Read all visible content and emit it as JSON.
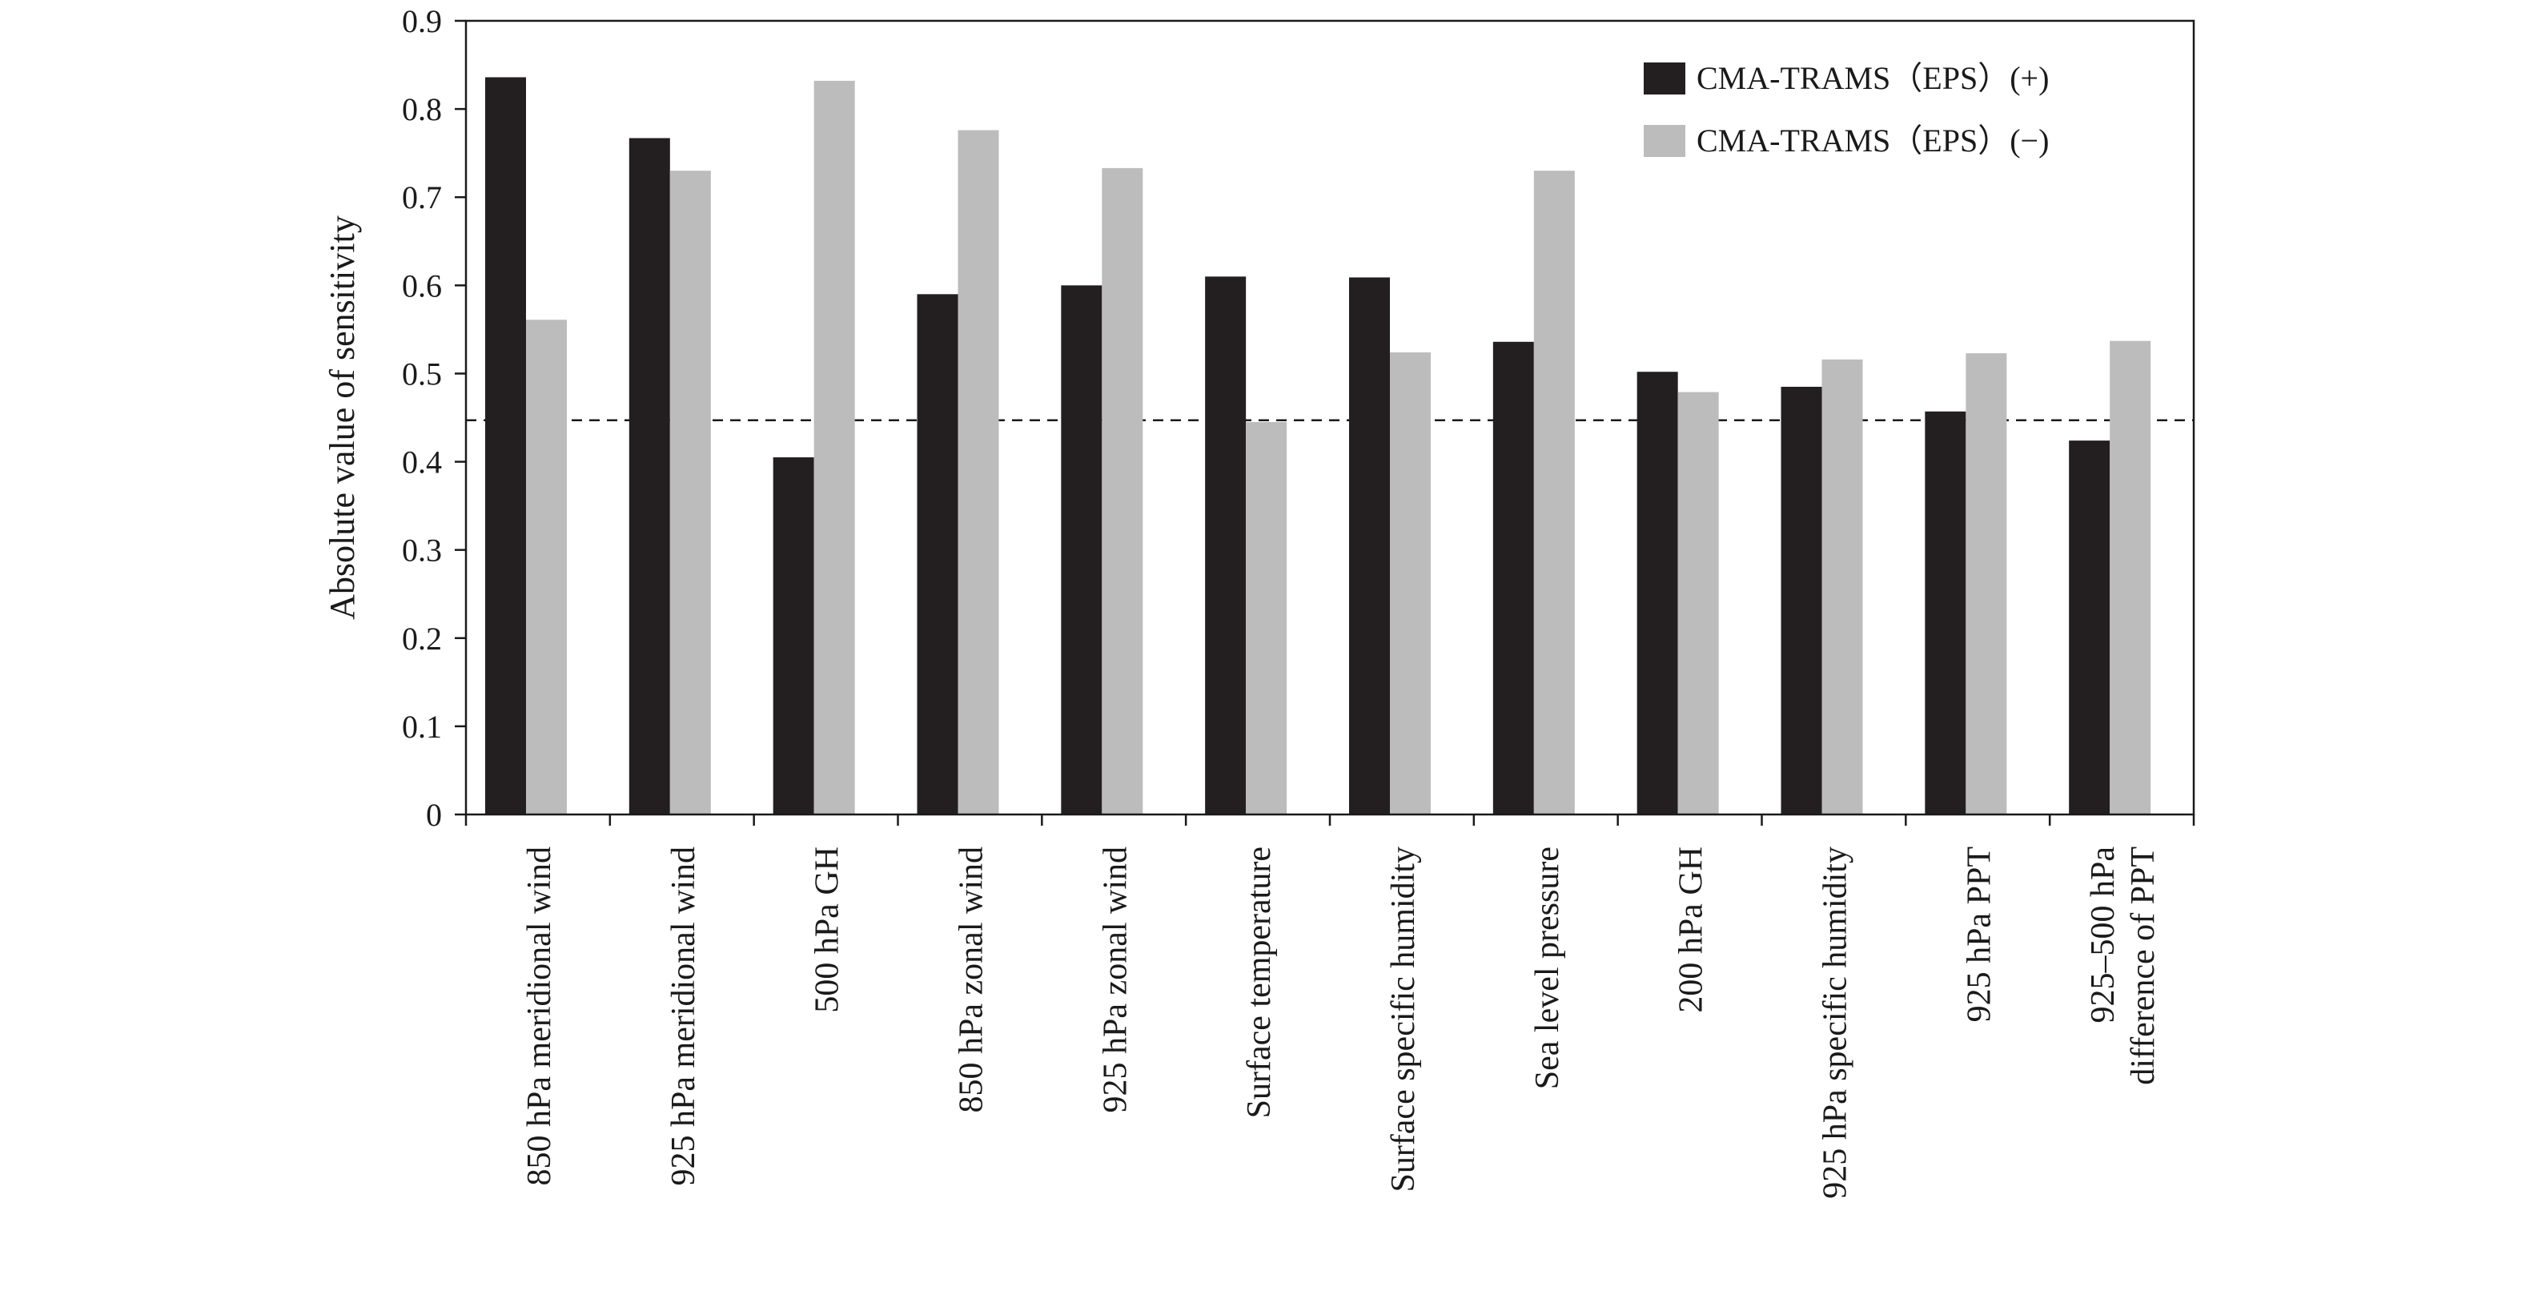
{
  "chart_data": {
    "type": "bar",
    "title": "",
    "xlabel": "",
    "ylabel": "Absolute value of sensitivity",
    "ylim": [
      0,
      0.9
    ],
    "yticks": [
      "0",
      "0.1",
      "0.2",
      "0.3",
      "0.4",
      "0.5",
      "0.6",
      "0.7",
      "0.8",
      "0.9"
    ],
    "grid": false,
    "legend_position": "top-right",
    "reference_line": {
      "value": 0.447,
      "style": "dashed"
    },
    "categories": [
      [
        "850 hPa meridional wind"
      ],
      [
        "925 hPa meridional wind"
      ],
      [
        "500 hPa GH"
      ],
      [
        "850 hPa zonal wind"
      ],
      [
        "925 hPa zonal wind"
      ],
      [
        "Surface temperature"
      ],
      [
        "Surface specific humidity"
      ],
      [
        "Sea level pressure"
      ],
      [
        "200 hPa GH"
      ],
      [
        "925 hPa specific humidity"
      ],
      [
        "925 hPa PPT"
      ],
      [
        "925–500 hPa",
        "difference of PPT"
      ]
    ],
    "series": [
      {
        "name": "CMA-TRAMS（EPS）(+)",
        "color": "#231f20",
        "values": [
          0.836,
          0.767,
          0.405,
          0.59,
          0.6,
          0.61,
          0.609,
          0.536,
          0.502,
          0.485,
          0.457,
          0.424
        ]
      },
      {
        "name": "CMA-TRAMS（EPS）(−)",
        "color": "#bcbcbc",
        "values": [
          0.561,
          0.73,
          0.832,
          0.776,
          0.733,
          0.445,
          0.524,
          0.73,
          0.479,
          0.516,
          0.523,
          0.537
        ]
      }
    ]
  }
}
